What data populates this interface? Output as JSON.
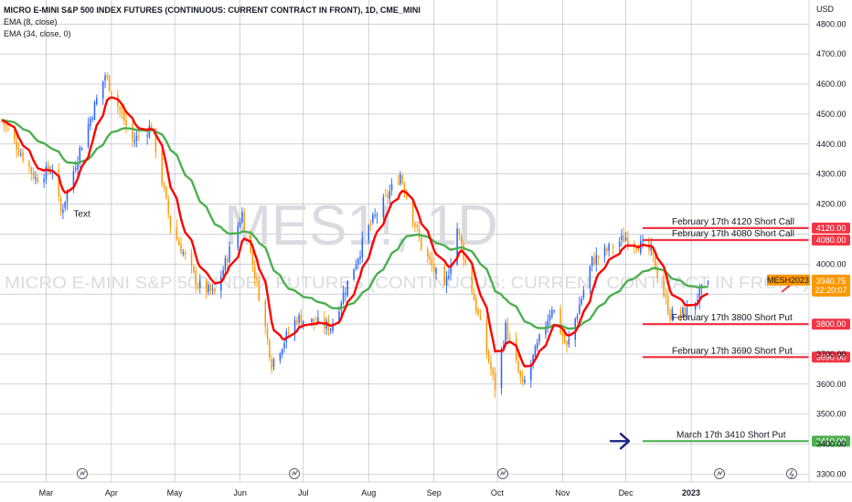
{
  "header": {
    "title": "MICRO E-MINI S&P 500 INDEX FUTURES (CONTINUOUS: CURRENT CONTRACT IN FRONT), 1D, CME_MINI",
    "indicator1": "EMA (8, close)",
    "indicator2": "EMA (34, close, 0)"
  },
  "watermark": {
    "symbol": "MES1!, 1D",
    "description": "MICRO E-MINI S&P 500 INDEX FUTURES (CONTINUOUS: CURRENT CONTRACT IN FRONT)"
  },
  "colors": {
    "up": "#2962ff",
    "down": "#ff9800",
    "ema_fast": "#ff0000",
    "ema_slow": "#4caf50",
    "level_red": "#f23645",
    "level_green": "#4caf50",
    "arrow": "#1a237e",
    "last_price": "#ff9800",
    "grid": "#b2b5be"
  },
  "chart_data": {
    "type": "candlestick",
    "y_axis": {
      "unit": "USD",
      "ylim": [
        3270,
        4830
      ],
      "ticks": [
        3300,
        3400,
        3500,
        3600,
        3700,
        3800,
        3900,
        4000,
        4100,
        4200,
        4300,
        4400,
        4500,
        4600,
        4700,
        4800
      ]
    },
    "x_axis": {
      "ticks": [
        "Mar",
        "Apr",
        "May",
        "Jun",
        "Jul",
        "Aug",
        "Sep",
        "Oct",
        "Nov",
        "Dec",
        "2023"
      ]
    },
    "grid": true,
    "price_anchors": [
      {
        "date": "2022-02-08",
        "close": 4480
      },
      {
        "date": "2022-02-17",
        "close": 4370
      },
      {
        "date": "2022-02-24",
        "close": 4285
      },
      {
        "date": "2022-03-04",
        "close": 4320
      },
      {
        "date": "2022-03-08",
        "close": 4170
      },
      {
        "date": "2022-03-16",
        "close": 4360
      },
      {
        "date": "2022-03-29",
        "close": 4630
      },
      {
        "date": "2022-04-11",
        "close": 4410
      },
      {
        "date": "2022-04-20",
        "close": 4460
      },
      {
        "date": "2022-04-29",
        "close": 4130
      },
      {
        "date": "2022-05-12",
        "close": 3930
      },
      {
        "date": "2022-05-20",
        "close": 3900
      },
      {
        "date": "2022-06-02",
        "close": 4170
      },
      {
        "date": "2022-06-10",
        "close": 3900
      },
      {
        "date": "2022-06-16",
        "close": 3670
      },
      {
        "date": "2022-06-28",
        "close": 3820
      },
      {
        "date": "2022-07-14",
        "close": 3790
      },
      {
        "date": "2022-08-01",
        "close": 4120
      },
      {
        "date": "2022-08-16",
        "close": 4300
      },
      {
        "date": "2022-08-26",
        "close": 4060
      },
      {
        "date": "2022-09-06",
        "close": 3910
      },
      {
        "date": "2022-09-12",
        "close": 4120
      },
      {
        "date": "2022-09-30",
        "close": 3590
      },
      {
        "date": "2022-10-05",
        "close": 3790
      },
      {
        "date": "2022-10-13",
        "close": 3590
      },
      {
        "date": "2022-10-27",
        "close": 3860
      },
      {
        "date": "2022-11-03",
        "close": 3720
      },
      {
        "date": "2022-11-15",
        "close": 4010
      },
      {
        "date": "2022-12-01",
        "close": 4090
      },
      {
        "date": "2022-12-13",
        "close": 4040
      },
      {
        "date": "2022-12-22",
        "close": 3830
      },
      {
        "date": "2022-12-30",
        "close": 3840
      },
      {
        "date": "2023-01-06",
        "close": 3910
      },
      {
        "date": "2023-01-09",
        "close": 3940.75
      }
    ],
    "ema_fast_name": "EMA (8, close)",
    "ema_slow_name": "EMA (34, close, 0)",
    "last_price": {
      "symbol": "MESH2023",
      "value": "3940.75",
      "countdown": "22:20:07"
    },
    "levels": [
      {
        "label": "February 17th 4120 Short Call",
        "price": 4120,
        "tag": "4120.00",
        "color": "red"
      },
      {
        "label": "February 17th 4080 Short Call",
        "price": 4080,
        "tag": "4080.00",
        "color": "red"
      },
      {
        "label": "February 17th 3800 Short Put",
        "price": 3800,
        "tag": "3800.00",
        "color": "red"
      },
      {
        "label": "February 17th 3690 Short Put",
        "price": 3690,
        "tag": "3690.00",
        "color": "red"
      },
      {
        "label": "March 17th 3410 Short Put",
        "price": 3410,
        "tag": "3410.00",
        "color": "green"
      }
    ],
    "text_note": {
      "text": "Text",
      "date": "2022-03-14",
      "price": 4170
    }
  }
}
